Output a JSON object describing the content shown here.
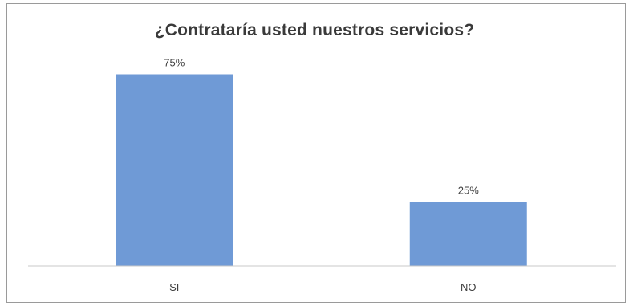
{
  "chart_data": {
    "type": "bar",
    "title": "¿Contrataría usted nuestros servicios?",
    "categories": [
      "SI",
      "NO"
    ],
    "values": [
      75,
      25
    ],
    "value_labels": [
      "75%",
      "25%"
    ],
    "ylim": [
      0,
      100
    ],
    "grid": false,
    "legend": "none",
    "bar_color": "#6f9ad6"
  }
}
